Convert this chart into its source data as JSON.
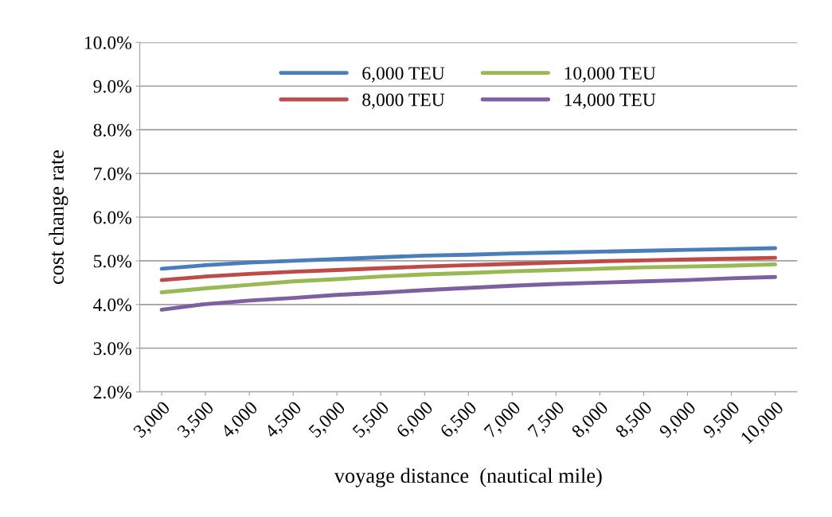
{
  "chart_data": {
    "type": "line",
    "xlabel": "voyage distance  (nautical mile)",
    "ylabel": "cost change rate",
    "categories": [
      "3,000",
      "3,500",
      "4,000",
      "4,500",
      "5,000",
      "5,500",
      "6,000",
      "6,500",
      "7,000",
      "7,500",
      "8,000",
      "8,500",
      "9,000",
      "9,500",
      "10,000"
    ],
    "series": [
      {
        "name": "6,000 TEU",
        "color": "#4a7ebb",
        "values": [
          4.82,
          4.9,
          4.96,
          5.0,
          5.04,
          5.08,
          5.12,
          5.14,
          5.17,
          5.19,
          5.21,
          5.23,
          5.25,
          5.27,
          5.29
        ]
      },
      {
        "name": "8,000 TEU",
        "color": "#be4b48",
        "values": [
          4.56,
          4.64,
          4.7,
          4.75,
          4.79,
          4.83,
          4.87,
          4.9,
          4.93,
          4.96,
          4.99,
          5.01,
          5.03,
          5.05,
          5.07
        ]
      },
      {
        "name": "10,000 TEU",
        "color": "#98b954",
        "values": [
          4.28,
          4.37,
          4.45,
          4.53,
          4.58,
          4.64,
          4.69,
          4.72,
          4.76,
          4.79,
          4.82,
          4.85,
          4.87,
          4.89,
          4.92
        ]
      },
      {
        "name": "14,000 TEU",
        "color": "#7d60a0",
        "values": [
          3.88,
          4.01,
          4.09,
          4.15,
          4.22,
          4.27,
          4.33,
          4.38,
          4.43,
          4.47,
          4.5,
          4.53,
          4.56,
          4.6,
          4.63
        ]
      }
    ],
    "ylim": [
      2,
      10
    ],
    "yticks": [
      {
        "value": 2,
        "label": "2.0%"
      },
      {
        "value": 3,
        "label": "3.0%"
      },
      {
        "value": 4,
        "label": "4.0%"
      },
      {
        "value": 5,
        "label": "5.0%"
      },
      {
        "value": 6,
        "label": "6.0%"
      },
      {
        "value": 7,
        "label": "7.0%"
      },
      {
        "value": 8,
        "label": "8.0%"
      },
      {
        "value": 9,
        "label": "9.0%"
      },
      {
        "value": 10,
        "label": "10.0%"
      }
    ],
    "grid": "y",
    "legend": "top",
    "marker": "none",
    "line_style": "solid"
  }
}
